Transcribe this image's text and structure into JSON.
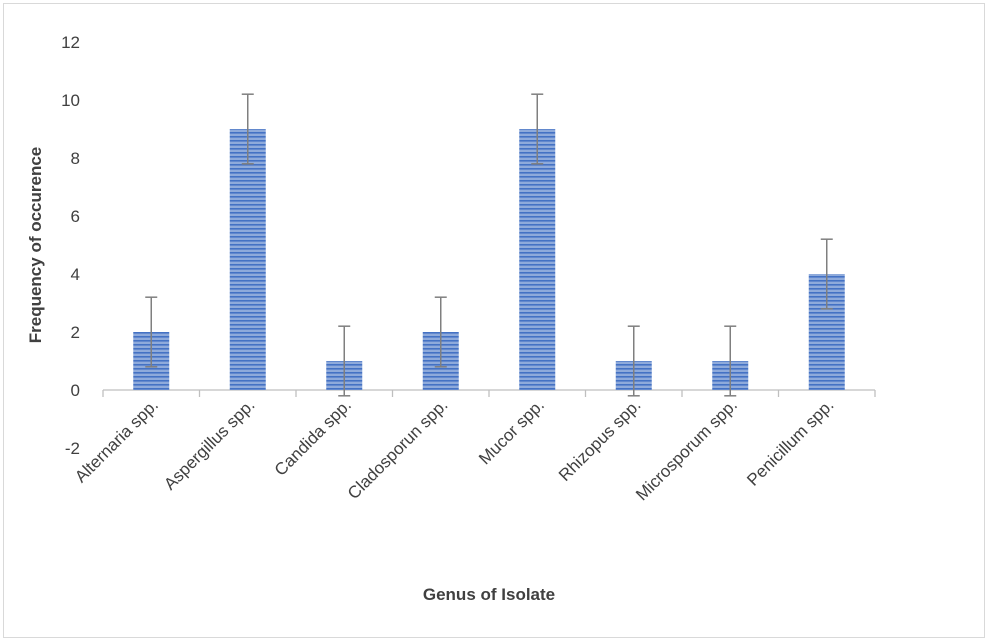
{
  "chart_data": {
    "type": "bar",
    "categories": [
      "Alternaria spp.",
      "Aspergillus spp.",
      "Candida spp.",
      "Cladosporun spp.",
      "Mucor spp.",
      "Rhizopus spp.",
      "Microsporum spp.",
      "Penicillum spp."
    ],
    "series": [
      {
        "values": [
          2,
          9,
          1,
          2,
          9,
          1,
          1,
          4
        ],
        "error": [
          1.2,
          1.2,
          1.2,
          1.2,
          1.2,
          1.2,
          1.2,
          1.2
        ]
      }
    ],
    "xlabel": "Genus of Isolate",
    "ylabel": "Frequency of occurence",
    "ylim": [
      -2,
      12
    ],
    "yticks": [
      "-2",
      "0",
      "2",
      "4",
      "6",
      "8",
      "10",
      "12"
    ],
    "grid": false,
    "legend": "none",
    "colors": {
      "bar_fill": "#8eaadb",
      "bar_stripe": "#4472c4",
      "error_bar": "#7f7f7f",
      "axis": "#bfbfbf"
    }
  }
}
